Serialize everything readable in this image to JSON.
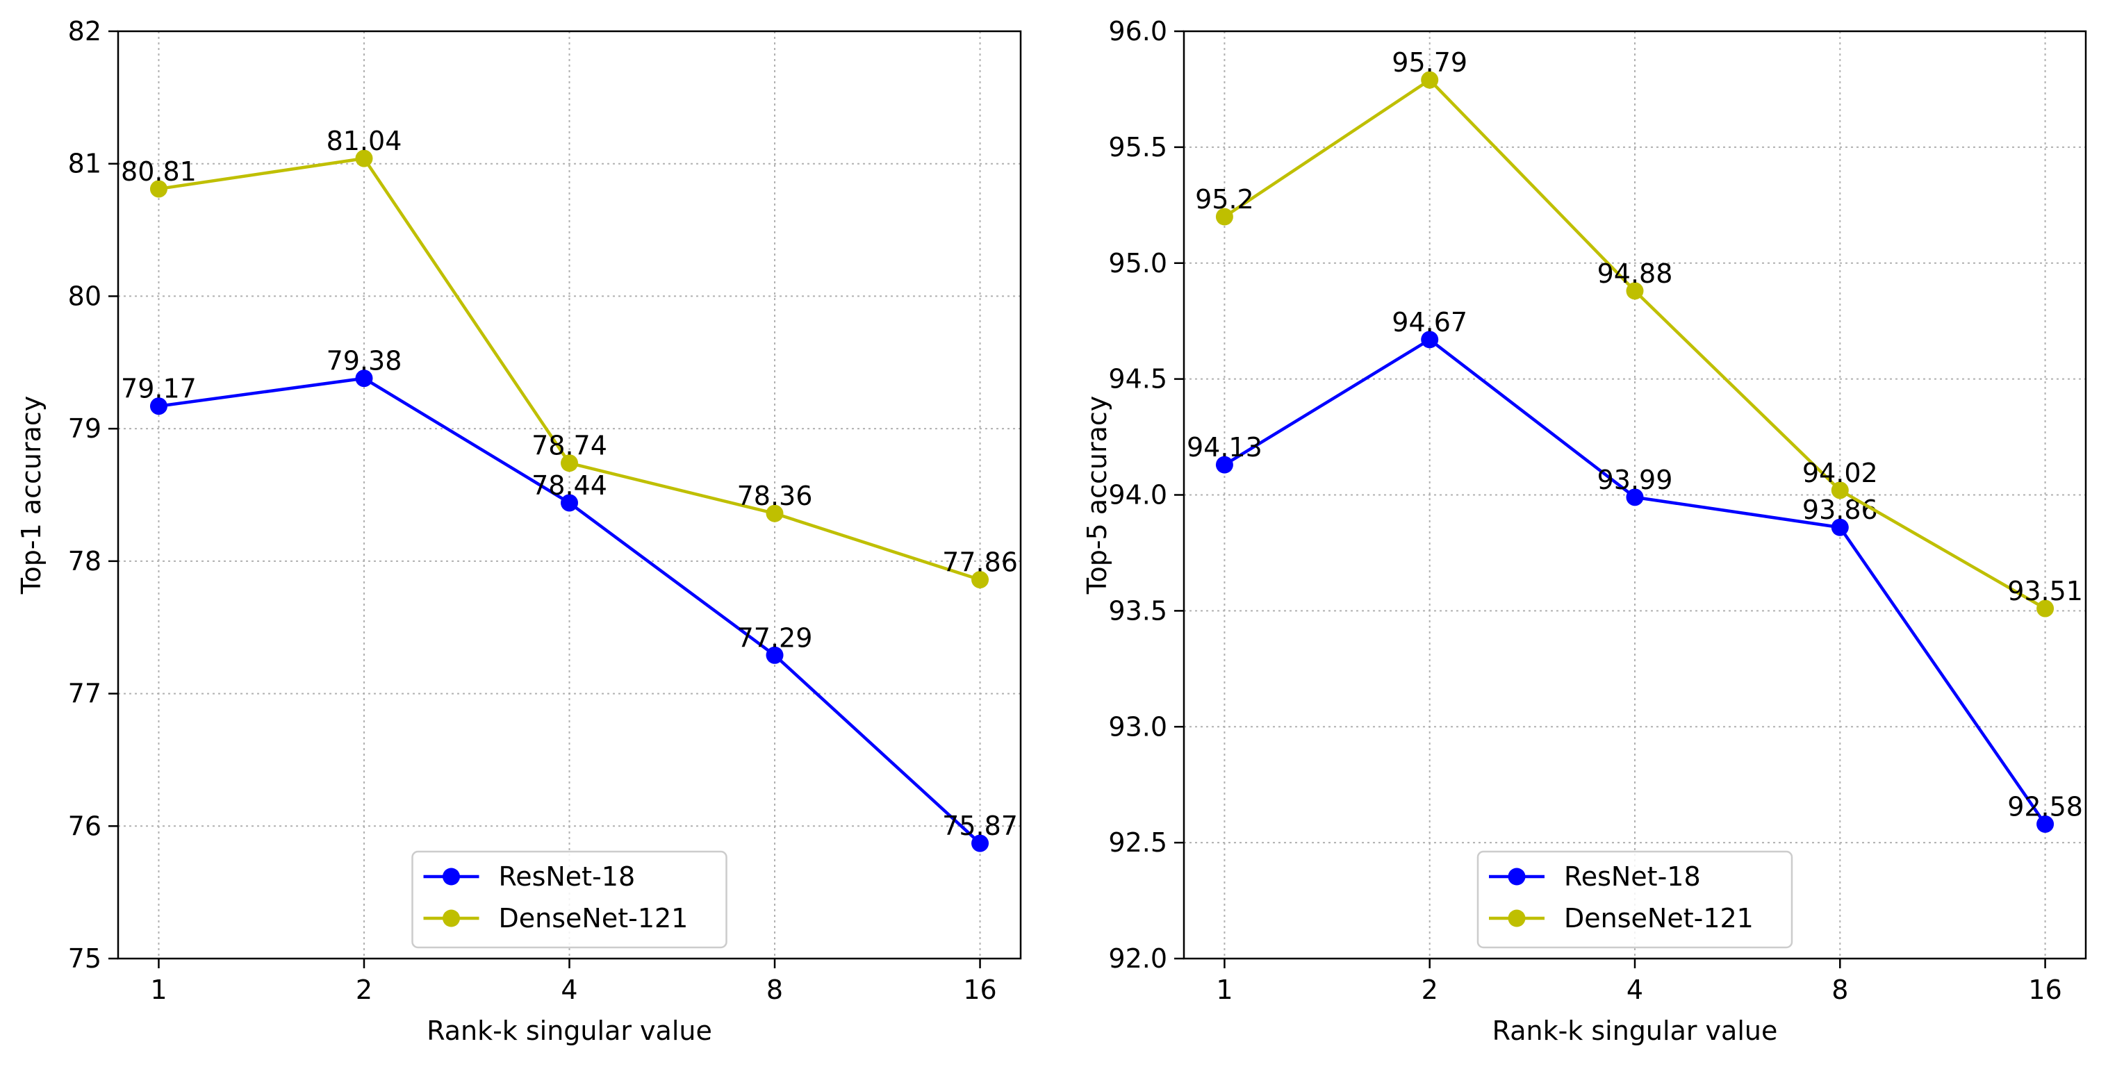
{
  "chart_data": [
    {
      "type": "line",
      "xlabel": "Rank-k singular value",
      "ylabel": "Top-1 accuracy",
      "x": [
        "1",
        "2",
        "4",
        "8",
        "16"
      ],
      "ylim": [
        75,
        82
      ],
      "yticks": [
        "75",
        "76",
        "77",
        "78",
        "79",
        "80",
        "81",
        "82"
      ],
      "grid": true,
      "legend_position": "bottom-center",
      "series": [
        {
          "name": "ResNet-18",
          "color": "#0000ff",
          "values": [
            79.17,
            79.38,
            78.44,
            77.29,
            75.87
          ],
          "labels": [
            "79.17",
            "79.38",
            "78.44",
            "77.29",
            "75.87"
          ]
        },
        {
          "name": "DenseNet-121",
          "color": "#bfbf00",
          "values": [
            80.81,
            81.04,
            78.74,
            78.36,
            77.86
          ],
          "labels": [
            "80.81",
            "81.04",
            "78.74",
            "78.36",
            "77.86"
          ]
        }
      ]
    },
    {
      "type": "line",
      "xlabel": "Rank-k singular value",
      "ylabel": "Top-5 accuracy",
      "x": [
        "1",
        "2",
        "4",
        "8",
        "16"
      ],
      "ylim": [
        92.0,
        96.0
      ],
      "yticks": [
        "92.0",
        "92.5",
        "93.0",
        "93.5",
        "94.0",
        "94.5",
        "95.0",
        "95.5",
        "96.0"
      ],
      "grid": true,
      "legend_position": "bottom-center",
      "series": [
        {
          "name": "ResNet-18",
          "color": "#0000ff",
          "values": [
            94.13,
            94.67,
            93.99,
            93.86,
            92.58
          ],
          "labels": [
            "94.13",
            "94.67",
            "93.99",
            "93.86",
            "92.58"
          ]
        },
        {
          "name": "DenseNet-121",
          "color": "#bfbf00",
          "values": [
            95.2,
            95.79,
            94.88,
            94.02,
            93.51
          ],
          "labels": [
            "95.2",
            "95.79",
            "94.88",
            "94.02",
            "93.51"
          ]
        }
      ]
    }
  ]
}
